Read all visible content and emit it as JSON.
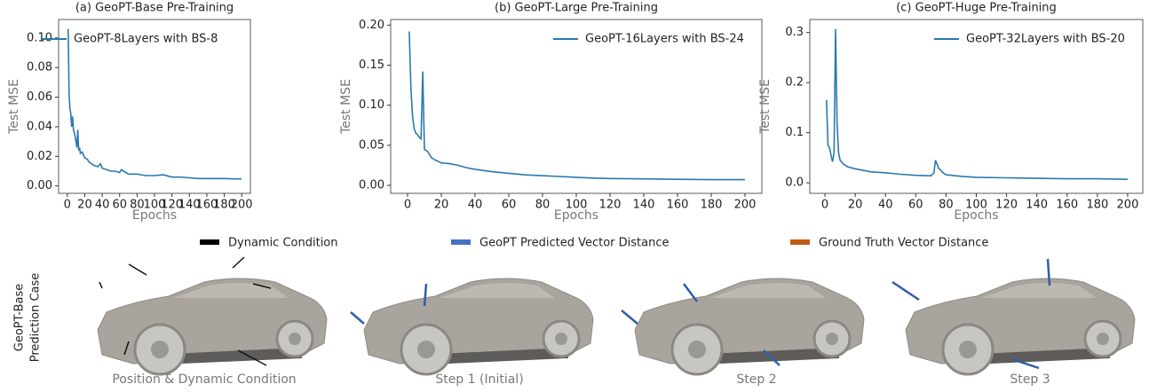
{
  "chart_data": [
    {
      "type": "line",
      "title": "(a) GeoPT-Base Pre-Training",
      "xlabel": "Epochs",
      "ylabel": "Test MSE",
      "legend": "upper right",
      "grid": false,
      "xlim": [
        -10,
        210
      ],
      "ylim": [
        -0.005,
        0.1125
      ],
      "xticks": [
        0,
        20,
        40,
        60,
        80,
        100,
        120,
        140,
        160,
        180,
        200
      ],
      "yticks": [
        {
          "value": 0,
          "label": "0.00"
        },
        {
          "value": 0.02,
          "label": "0.02"
        },
        {
          "value": 0.04,
          "label": "0.04"
        },
        {
          "value": 0.06,
          "label": "0.06"
        },
        {
          "value": 0.08,
          "label": "0.08"
        },
        {
          "value": 0.1,
          "label": "0.10"
        }
      ],
      "x": [
        1,
        2,
        3,
        4,
        5,
        6,
        7,
        8,
        9,
        10,
        11,
        12,
        13,
        14,
        15,
        17,
        20,
        23,
        25,
        28,
        30,
        35,
        38,
        40,
        45,
        50,
        55,
        60,
        62,
        70,
        80,
        90,
        100,
        110,
        120,
        130,
        140,
        150,
        160,
        170,
        180,
        190,
        200
      ],
      "series": [
        {
          "name": "GeoPT-8Layers with BS-8",
          "color": "#2a78b0",
          "values": [
            0.106,
            0.062,
            0.052,
            0.049,
            0.04,
            0.047,
            0.038,
            0.036,
            0.033,
            0.03,
            0.026,
            0.038,
            0.024,
            0.026,
            0.022,
            0.023,
            0.019,
            0.018,
            0.016,
            0.015,
            0.014,
            0.013,
            0.015,
            0.012,
            0.011,
            0.01,
            0.01,
            0.009,
            0.011,
            0.008,
            0.008,
            0.007,
            0.007,
            0.0075,
            0.006,
            0.006,
            0.0055,
            0.005,
            0.005,
            0.005,
            0.005,
            0.0048,
            0.0048
          ]
        }
      ]
    },
    {
      "type": "line",
      "title": "(b) GeoPT-Large Pre-Training",
      "xlabel": "Epochs",
      "ylabel": "Test MSE",
      "legend": "upper right",
      "grid": false,
      "xlim": [
        -10,
        210
      ],
      "ylim": [
        -0.01,
        0.207
      ],
      "xticks": [
        0,
        20,
        40,
        60,
        80,
        100,
        120,
        140,
        160,
        180,
        200
      ],
      "yticks": [
        {
          "value": 0,
          "label": "0.00"
        },
        {
          "value": 0.05,
          "label": "0.05"
        },
        {
          "value": 0.1,
          "label": "0.10"
        },
        {
          "value": 0.15,
          "label": "0.15"
        },
        {
          "value": 0.2,
          "label": "0.20"
        }
      ],
      "x": [
        1,
        2,
        3,
        4,
        5,
        6,
        7,
        8,
        9,
        10,
        12,
        14,
        16,
        18,
        20,
        25,
        30,
        35,
        40,
        50,
        60,
        70,
        80,
        90,
        100,
        110,
        120,
        140,
        160,
        180,
        200
      ],
      "series": [
        {
          "name": "GeoPT-16Layers with BS-24",
          "color": "#2a78b0",
          "values": [
            0.192,
            0.12,
            0.085,
            0.07,
            0.065,
            0.063,
            0.06,
            0.058,
            0.142,
            0.045,
            0.042,
            0.035,
            0.032,
            0.03,
            0.028,
            0.027,
            0.025,
            0.022,
            0.02,
            0.017,
            0.015,
            0.013,
            0.012,
            0.011,
            0.01,
            0.009,
            0.0085,
            0.008,
            0.0075,
            0.007,
            0.007
          ]
        }
      ]
    },
    {
      "type": "line",
      "title": "(c) GeoPT-Huge Pre-Training",
      "xlabel": "Epochs",
      "ylabel": "Test MSE",
      "legend": "upper right",
      "grid": false,
      "xlim": [
        -10,
        210
      ],
      "ylim": [
        -0.021,
        0.326
      ],
      "xticks": [
        0,
        20,
        40,
        60,
        80,
        100,
        120,
        140,
        160,
        180,
        200
      ],
      "yticks": [
        {
          "value": 0,
          "label": "0.0"
        },
        {
          "value": 0.1,
          "label": "0.1"
        },
        {
          "value": 0.2,
          "label": "0.2"
        },
        {
          "value": 0.3,
          "label": "0.3"
        }
      ],
      "x": [
        1,
        2,
        3,
        4,
        5,
        6,
        7,
        8,
        9,
        10,
        12,
        15,
        20,
        30,
        40,
        50,
        60,
        70,
        72,
        73,
        75,
        78,
        80,
        90,
        100,
        120,
        140,
        160,
        180,
        200
      ],
      "series": [
        {
          "name": "GeoPT-32Layers with BS-20",
          "color": "#2a78b0",
          "values": [
            0.165,
            0.075,
            0.07,
            0.055,
            0.042,
            0.06,
            0.307,
            0.12,
            0.06,
            0.045,
            0.038,
            0.032,
            0.028,
            0.022,
            0.02,
            0.017,
            0.015,
            0.014,
            0.02,
            0.045,
            0.03,
            0.02,
            0.016,
            0.013,
            0.011,
            0.01,
            0.009,
            0.008,
            0.008,
            0.007
          ]
        }
      ]
    }
  ],
  "prediction_panel": {
    "side_label": [
      "GeoPT-Base",
      "Prediction Case"
    ],
    "legend": [
      {
        "name": "Dynamic Condition",
        "color": "#000000"
      },
      {
        "name": "GeoPT Predicted Vector Distance",
        "color": "#4472c4"
      },
      {
        "name": "Ground Truth Vector Distance",
        "color": "#c55a11"
      }
    ],
    "captions": [
      "Position & Dynamic Condition",
      "Step 1 (Initial)",
      "Step 2",
      "Step 3"
    ]
  }
}
